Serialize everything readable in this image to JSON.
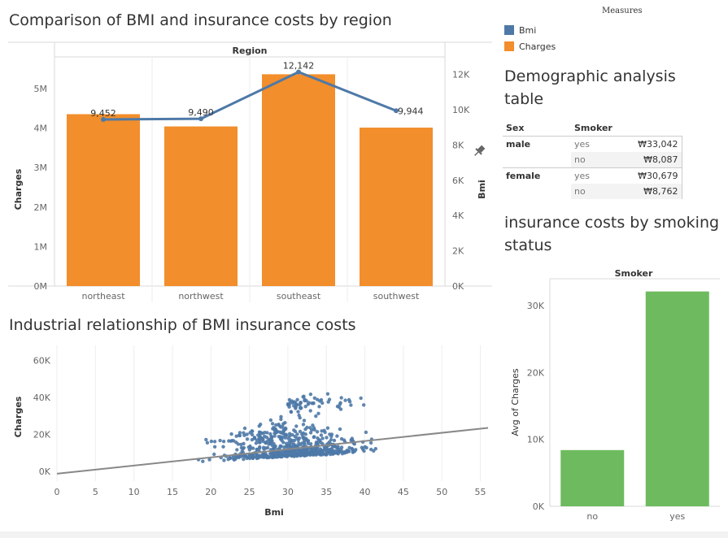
{
  "titles": {
    "region": "Comparison of BMI and insurance costs by region",
    "scatter": "Industrial relationship of BMI insurance costs",
    "demo": "Demographic analysis table",
    "smoking": "insurance costs by smoking status"
  },
  "legend": {
    "title": "Measures",
    "items": [
      {
        "label": "Bmi",
        "color": "#4e79a7"
      },
      {
        "label": "Charges",
        "color": "#f28e2b"
      }
    ]
  },
  "chart_data": [
    {
      "type": "bar",
      "header": "Region",
      "categories": [
        "northeast",
        "northwest",
        "southeast",
        "southwest"
      ],
      "series": [
        {
          "name": "Charges",
          "axis": "left",
          "values": [
            4350000,
            4040000,
            5360000,
            4010000
          ],
          "color": "#f28e2b"
        },
        {
          "name": "Bmi",
          "axis": "right",
          "type": "line",
          "values": [
            9452,
            9490,
            12142,
            9944
          ],
          "labels": [
            "9,452",
            "9,490",
            "12,142",
            "9,944"
          ],
          "color": "#4e79a7"
        }
      ],
      "ylabel": "Charges",
      "ylabel2": "Bmi",
      "yticks": [
        "0M",
        "1M",
        "2M",
        "3M",
        "4M",
        "5M"
      ],
      "yticks2": [
        "0K",
        "2K",
        "4K",
        "6K",
        "8K",
        "10K",
        "12K"
      ],
      "ylim": [
        0,
        5800000
      ],
      "ylim2": [
        0,
        13000
      ]
    },
    {
      "type": "scatter",
      "xlabel": "Bmi",
      "ylabel": "Charges",
      "xticks": [
        "0",
        "5",
        "10",
        "15",
        "20",
        "25",
        "30",
        "35",
        "40",
        "45",
        "50",
        "55"
      ],
      "yticks": [
        "0K",
        "20K",
        "40K",
        "60K"
      ],
      "xlim": [
        0,
        56
      ],
      "ylim": [
        -3000,
        68000
      ],
      "trend": {
        "x": [
          0,
          56
        ],
        "y": [
          -1200,
          23500
        ],
        "color": "#888888"
      },
      "color": "#4e79a7"
    },
    {
      "type": "table",
      "columns": [
        "Sex",
        "Smoker",
        ""
      ],
      "rows": [
        {
          "sex": "male",
          "smoker": "yes",
          "value": "₩33,042"
        },
        {
          "sex": "",
          "smoker": "no",
          "value": "₩8,087"
        },
        {
          "sex": "female",
          "smoker": "yes",
          "value": "₩30,679"
        },
        {
          "sex": "",
          "smoker": "no",
          "value": "₩8,762"
        }
      ]
    },
    {
      "type": "bar",
      "header": "Smoker",
      "categories": [
        "no",
        "yes"
      ],
      "values": [
        8400,
        32100
      ],
      "ylabel": "Avg of Charges",
      "yticks": [
        "0K",
        "10K",
        "20K",
        "30K"
      ],
      "ylim": [
        0,
        34000
      ],
      "color": "#6dbb5e"
    }
  ]
}
